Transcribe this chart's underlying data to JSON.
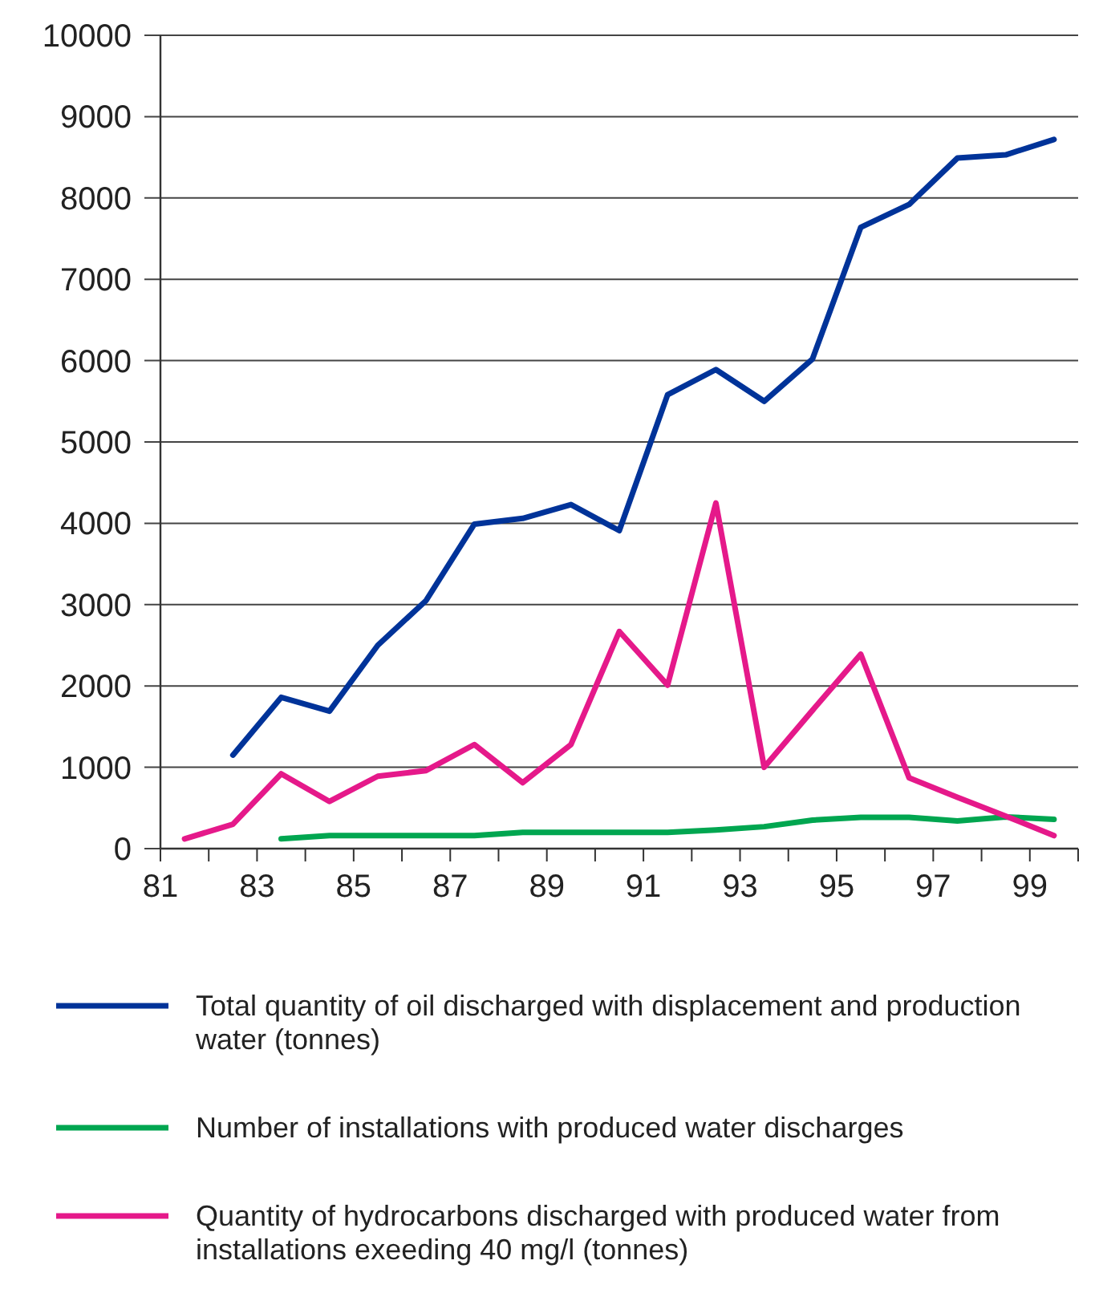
{
  "chart_data": {
    "type": "line",
    "x": [
      81.5,
      82.5,
      83.5,
      84.5,
      85.5,
      86.5,
      87.5,
      88.5,
      89.5,
      90.5,
      91.5,
      92.5,
      93.5,
      94.5,
      95.5,
      96.5,
      97.5,
      98.5,
      99.5
    ],
    "series": [
      {
        "name": "Total quantity of oil discharged with displacement and production water (tonnes)",
        "color": "#003399",
        "values": [
          null,
          1150,
          1860,
          1690,
          2500,
          3050,
          3990,
          4060,
          4230,
          3910,
          5580,
          5890,
          5500,
          6020,
          7640,
          7920,
          8490,
          8530,
          8720
        ]
      },
      {
        "name": "Number of installations with produced water discharges",
        "color": "#00a650",
        "values": [
          null,
          null,
          120,
          160,
          160,
          160,
          160,
          200,
          200,
          200,
          200,
          230,
          270,
          350,
          385,
          385,
          340,
          390,
          360
        ]
      },
      {
        "name": "Quantity of hydrocarbons discharged with produced water from installations exeeding 40 mg/l (tonnes)",
        "color": "#e5198a",
        "values": [
          120,
          300,
          920,
          580,
          890,
          960,
          1280,
          810,
          1280,
          2670,
          2010,
          4250,
          1000,
          1700,
          2390,
          870,
          630,
          400,
          160
        ]
      }
    ],
    "xlim": [
      81,
      100
    ],
    "xticks": [
      81,
      {
        "value": 82,
        "label": null
      },
      83,
      {
        "value": 84,
        "label": null
      },
      85,
      {
        "value": 86,
        "label": null
      },
      87,
      {
        "value": 88,
        "label": null
      },
      89,
      {
        "value": 90,
        "label": null
      },
      91,
      {
        "value": 92,
        "label": null
      },
      93,
      {
        "value": 94,
        "label": null
      },
      95,
      {
        "value": 96,
        "label": null
      },
      97,
      {
        "value": 98,
        "label": null
      },
      99,
      {
        "value": 100,
        "label": null
      }
    ],
    "ylim": [
      0,
      10000
    ],
    "yticks": [
      0,
      1000,
      2000,
      3000,
      4000,
      5000,
      6000,
      7000,
      8000,
      9000,
      10000
    ],
    "grid": "y",
    "legend": "bottom",
    "marker": "none",
    "line_style": "solid"
  }
}
